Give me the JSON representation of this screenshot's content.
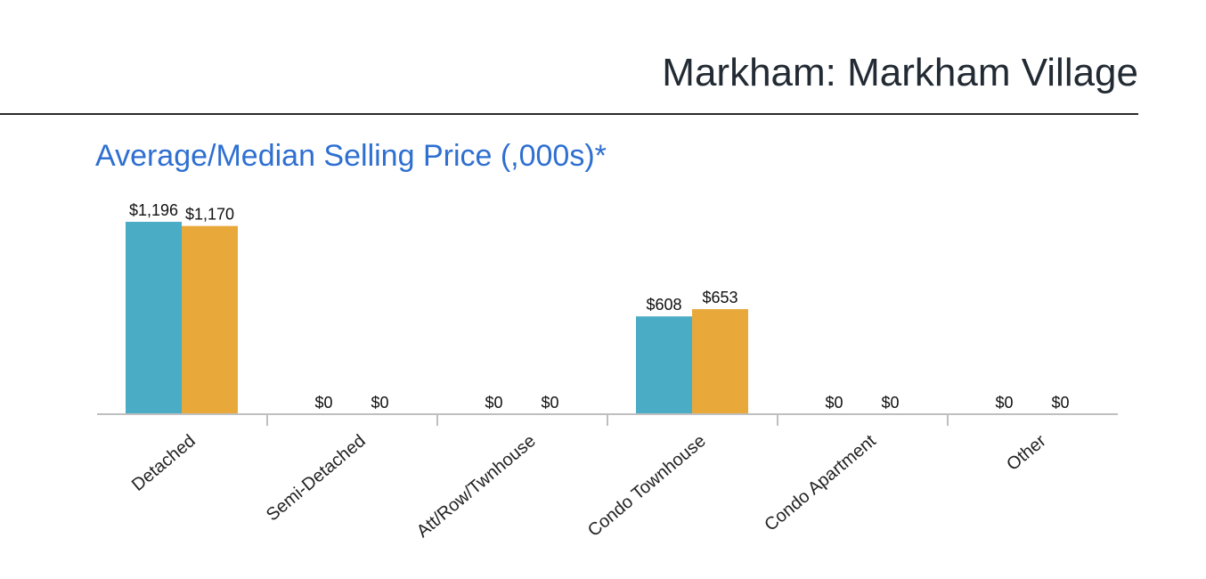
{
  "header": {
    "title": "Markham: Markham Village"
  },
  "chart_data": {
    "type": "bar",
    "title": "Average/Median Selling Price (,000s)*",
    "categories": [
      "Detached",
      "Semi-Detached",
      "Att/Row/Twnhouse",
      "Condo Townhouse",
      "Condo Apartment",
      "Other"
    ],
    "series": [
      {
        "values": [
          1196,
          0,
          0,
          608,
          0,
          0
        ],
        "labels": [
          "$1,196",
          "$0",
          "$0",
          "$608",
          "$0",
          "$0"
        ],
        "color": "#4bacc6"
      },
      {
        "values": [
          1170,
          0,
          0,
          653,
          0,
          0
        ],
        "labels": [
          "$1,170",
          "$0",
          "$0",
          "$653",
          "$0",
          "$0"
        ],
        "color": "#e9a93a"
      }
    ],
    "ylim": [
      0,
      1200
    ],
    "grid": false,
    "legend": "none"
  }
}
